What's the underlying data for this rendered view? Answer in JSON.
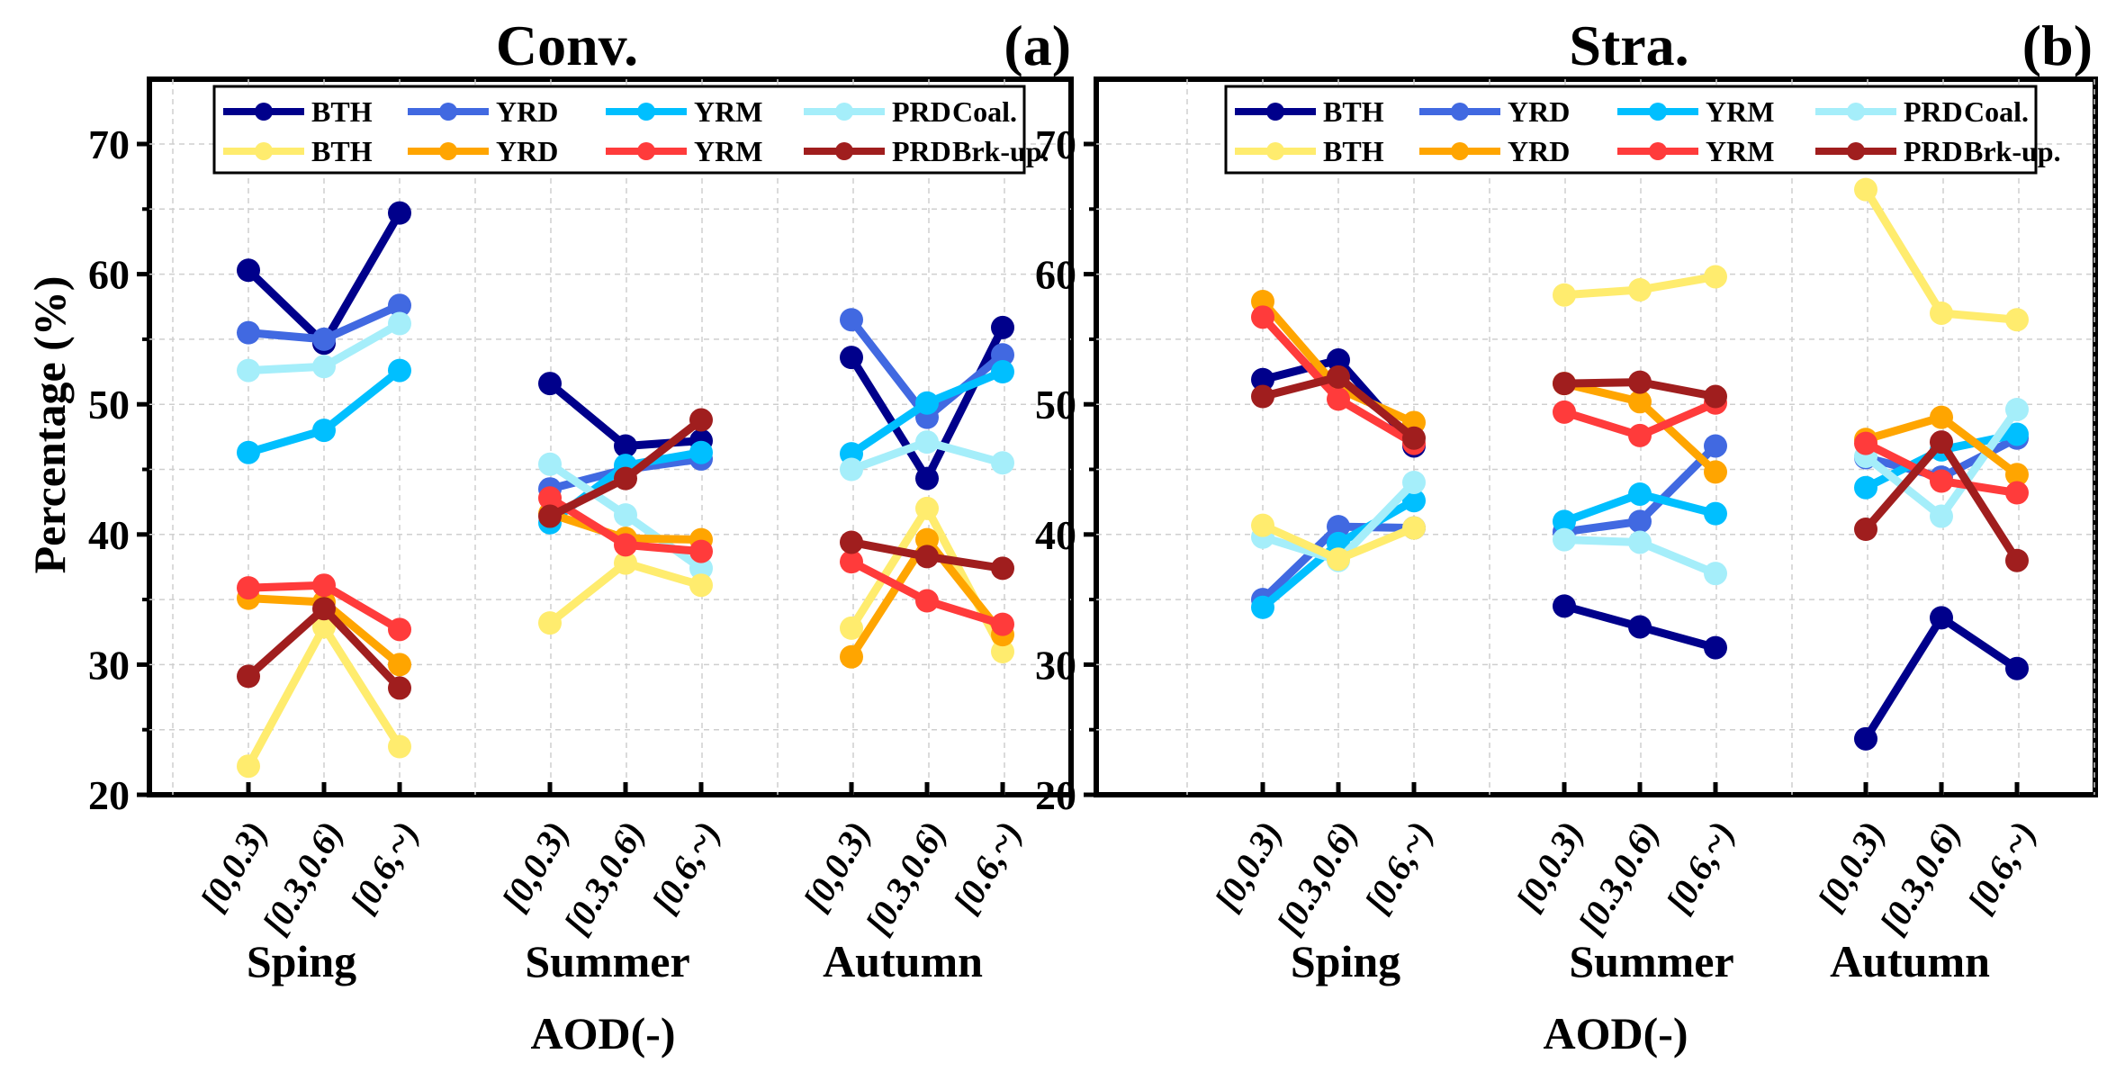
{
  "chart_data": [
    {
      "type": "line",
      "panel": "left",
      "title": "Conv.",
      "panel_label": "(a)",
      "ylabel": "Percentage (%)",
      "xlabel": "AOD(-)",
      "ylim": [
        20,
        75
      ],
      "yticks": [
        20,
        30,
        40,
        50,
        60,
        70
      ],
      "grid": true,
      "legend_position": "top",
      "groups": [
        "Sping",
        "Summer",
        "Autumn"
      ],
      "categories": [
        "[0,0.3)",
        "[0.3,0.6)",
        "[0.6,~)"
      ],
      "legend_rows": [
        {
          "suffix": "Coal.",
          "entries": [
            "BTH",
            "YRD",
            "YRM",
            "PRD"
          ]
        },
        {
          "suffix": "Brk-up.",
          "entries": [
            "BTH",
            "YRD",
            "YRM",
            "PRD"
          ]
        }
      ],
      "series": [
        {
          "name": "BTH Coal.",
          "color": "#00008b",
          "values": [
            [
              60.3,
              54.7,
              64.7
            ],
            [
              51.6,
              46.8,
              47.2
            ],
            [
              53.6,
              44.3,
              55.9
            ]
          ]
        },
        {
          "name": "YRD Coal.",
          "color": "#4169e1",
          "values": [
            [
              55.5,
              55.0,
              57.6
            ],
            [
              43.5,
              45.0,
              45.8
            ],
            [
              56.5,
              49.0,
              53.8
            ]
          ]
        },
        {
          "name": "YRM Coal.",
          "color": "#00bfff",
          "values": [
            [
              46.3,
              48.0,
              52.6
            ],
            [
              40.9,
              45.3,
              46.3
            ],
            [
              46.2,
              50.1,
              52.5
            ]
          ]
        },
        {
          "name": "PRD Coal.",
          "color": "#a5eefa",
          "values": [
            [
              52.6,
              52.9,
              56.2
            ],
            [
              45.4,
              41.5,
              37.4
            ],
            [
              45.0,
              47.1,
              45.5
            ]
          ]
        },
        {
          "name": "BTH Brk-up.",
          "color": "#ffec6e",
          "values": [
            [
              22.2,
              32.9,
              23.7
            ],
            [
              33.2,
              37.8,
              36.1
            ],
            [
              32.8,
              42.0,
              31.0
            ]
          ]
        },
        {
          "name": "YRD Brk-up.",
          "color": "#ffa500",
          "values": [
            [
              35.1,
              34.8,
              30.0
            ],
            [
              41.6,
              39.7,
              39.6
            ],
            [
              30.6,
              39.6,
              32.3
            ]
          ]
        },
        {
          "name": "YRM Brk-up.",
          "color": "#ff3b3b",
          "values": [
            [
              35.9,
              36.1,
              32.7
            ],
            [
              42.8,
              39.2,
              38.7
            ],
            [
              37.9,
              34.9,
              33.1
            ]
          ]
        },
        {
          "name": "PRD Brk-up.",
          "color": "#a01e1e",
          "values": [
            [
              29.1,
              34.3,
              28.2
            ],
            [
              41.4,
              44.3,
              48.8
            ],
            [
              39.4,
              38.3,
              37.4
            ]
          ]
        }
      ]
    },
    {
      "type": "line",
      "panel": "right",
      "title": "Stra.",
      "panel_label": "(b)",
      "ylabel": "",
      "xlabel": "AOD(-)",
      "ylim": [
        20,
        75
      ],
      "yticks": [
        20,
        30,
        40,
        50,
        60,
        70
      ],
      "grid": true,
      "legend_position": "top",
      "groups": [
        "Sping",
        "Summer",
        "Autumn"
      ],
      "categories": [
        "[0,0.3)",
        "[0.3,0.6)",
        "[0.6,~)"
      ],
      "legend_rows": [
        {
          "suffix": "Coal.",
          "entries": [
            "BTH",
            "YRD",
            "YRM",
            "PRD"
          ]
        },
        {
          "suffix": "Brk-up.",
          "entries": [
            "BTH",
            "YRD",
            "YRM",
            "PRD"
          ]
        }
      ],
      "series": [
        {
          "name": "BTH Coal.",
          "color": "#00008b",
          "values": [
            [
              51.9,
              53.4,
              46.8
            ],
            [
              34.5,
              32.9,
              31.3
            ],
            [
              24.3,
              33.6,
              29.7
            ]
          ]
        },
        {
          "name": "YRD Coal.",
          "color": "#4169e1",
          "values": [
            [
              35.0,
              40.6,
              40.5
            ],
            [
              40.2,
              41.0,
              46.8
            ],
            [
              45.9,
              44.4,
              47.4
            ]
          ]
        },
        {
          "name": "YRM Coal.",
          "color": "#00bfff",
          "values": [
            [
              34.4,
              39.3,
              42.6
            ],
            [
              41.0,
              43.1,
              41.6
            ],
            [
              43.6,
              46.5,
              47.7
            ]
          ]
        },
        {
          "name": "PRD Coal.",
          "color": "#a5eefa",
          "values": [
            [
              39.8,
              38.0,
              44.0
            ],
            [
              39.6,
              39.4,
              37.0
            ],
            [
              46.0,
              41.4,
              49.6
            ]
          ]
        },
        {
          "name": "BTH Brk-up.",
          "color": "#ffec6e",
          "values": [
            [
              40.7,
              38.1,
              40.5
            ],
            [
              58.4,
              58.8,
              59.8
            ],
            [
              66.5,
              57.0,
              56.5
            ]
          ]
        },
        {
          "name": "YRD Brk-up.",
          "color": "#ffa500",
          "values": [
            [
              57.9,
              51.2,
              48.6
            ],
            [
              51.6,
              50.2,
              44.8
            ],
            [
              47.3,
              49.0,
              44.6
            ]
          ]
        },
        {
          "name": "YRM Brk-up.",
          "color": "#ff3b3b",
          "values": [
            [
              56.7,
              50.4,
              47.0
            ],
            [
              49.4,
              47.6,
              50.1
            ],
            [
              47.0,
              44.1,
              43.2
            ]
          ]
        },
        {
          "name": "PRD Brk-up.",
          "color": "#a01e1e",
          "values": [
            [
              50.6,
              52.1,
              47.4
            ],
            [
              51.6,
              51.7,
              50.6
            ],
            [
              40.4,
              47.1,
              38.0
            ]
          ]
        }
      ]
    }
  ]
}
